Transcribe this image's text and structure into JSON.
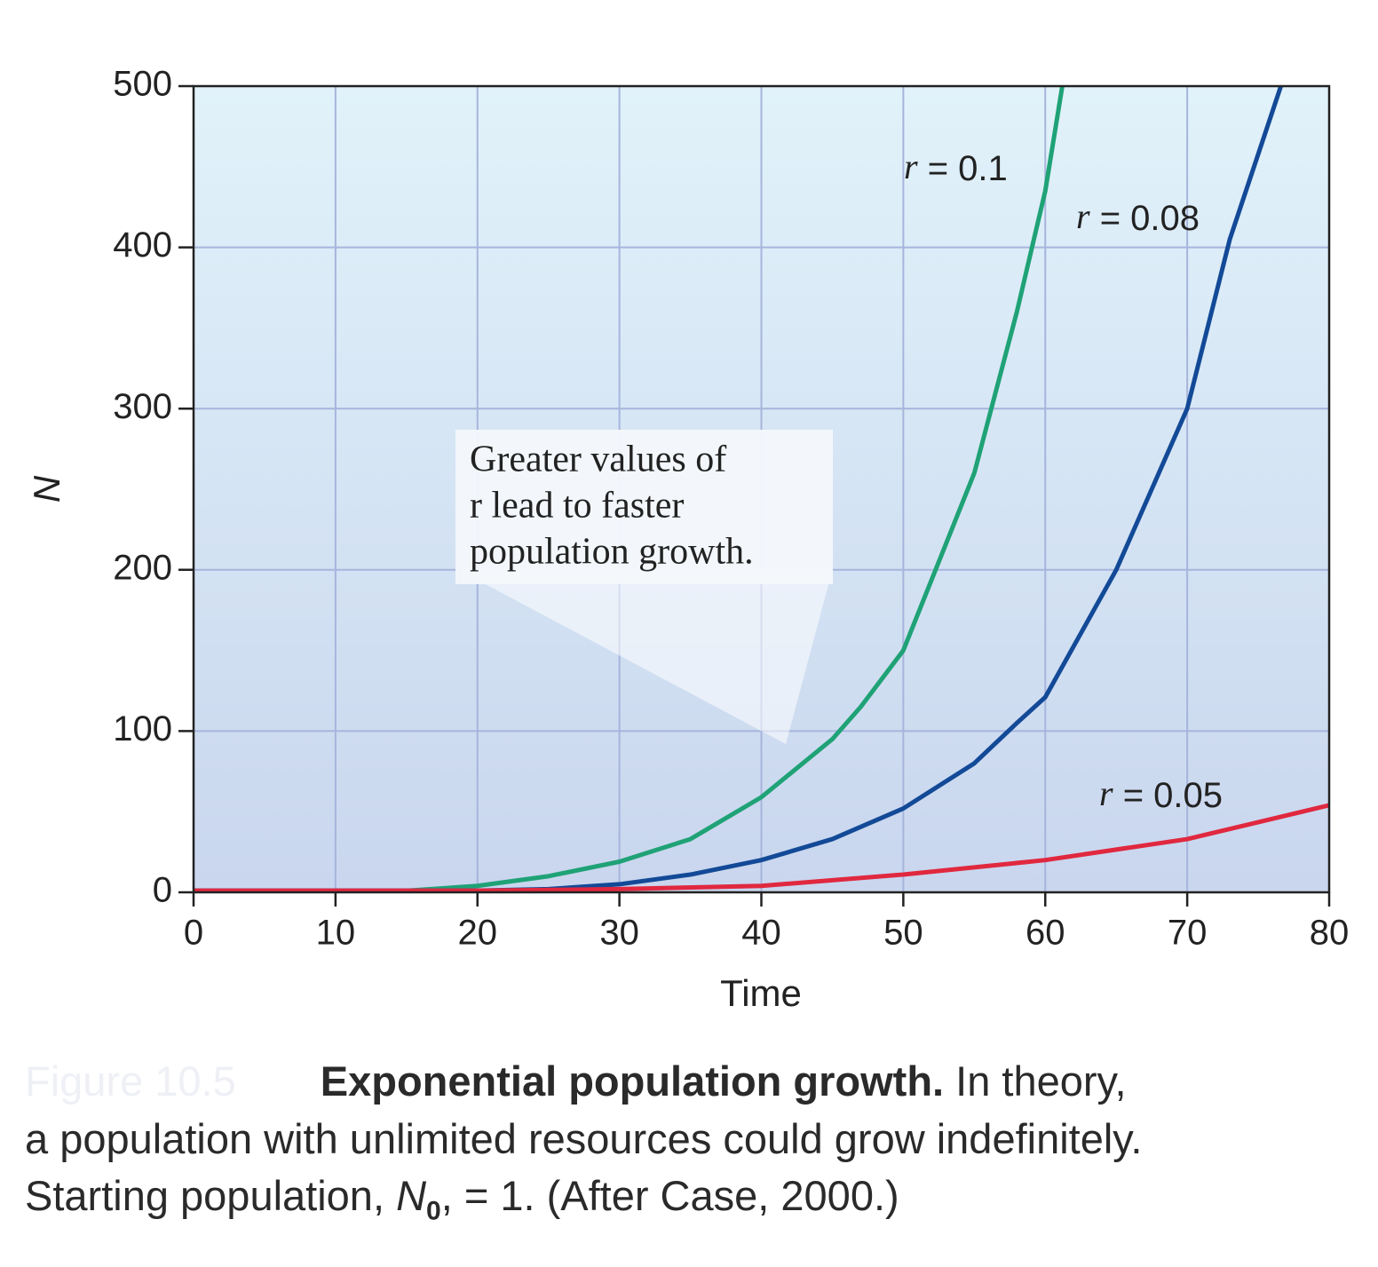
{
  "chart_data": {
    "type": "line",
    "y_label": "N",
    "x_label": "Time",
    "xlim": [
      0,
      80
    ],
    "xticks": [
      0,
      10,
      20,
      30,
      40,
      50,
      60,
      70,
      80
    ],
    "ylim": [
      0,
      500
    ],
    "yticks": [
      0,
      100,
      200,
      300,
      400,
      500
    ],
    "grid": true,
    "series": [
      {
        "name": "r = 0.1",
        "color": "#1fa276",
        "x": [
          0,
          10,
          15,
          20,
          25,
          30,
          35,
          40,
          45,
          47,
          50,
          55,
          58,
          60,
          61.2
        ],
        "values": [
          1,
          1,
          1,
          4,
          10,
          19,
          33,
          59,
          95,
          115,
          150,
          260,
          360,
          435,
          500
        ]
      },
      {
        "name": "r = 0.08",
        "color": "#134a97",
        "x": [
          0,
          10,
          20,
          25,
          30,
          35,
          40,
          45,
          50,
          55,
          58,
          60,
          65,
          70,
          73,
          76.6
        ],
        "values": [
          1,
          1,
          1,
          2,
          5,
          11,
          20,
          33,
          52,
          80,
          105,
          121,
          200,
          300,
          405,
          500
        ]
      },
      {
        "name": "r = 0.05",
        "color": "#e0283f",
        "x": [
          0,
          10,
          20,
          30,
          40,
          50,
          60,
          70,
          80
        ],
        "values": [
          1,
          1,
          1,
          2,
          4,
          11,
          20,
          33,
          54
        ]
      }
    ],
    "annotation": [
      "Greater values of",
      "r lead to faster",
      "population growth."
    ]
  },
  "caption": {
    "label": "Figure 10.5",
    "bold": "Exponential population growth.",
    "line1": " In theory,",
    "line2": "a population with unlimited resources could grow indefinitely.",
    "line3_start": "Starting population, ",
    "symbol": "N",
    "subscript": "0",
    "line3_end": ", = 1. (After Case, 2000.)"
  }
}
